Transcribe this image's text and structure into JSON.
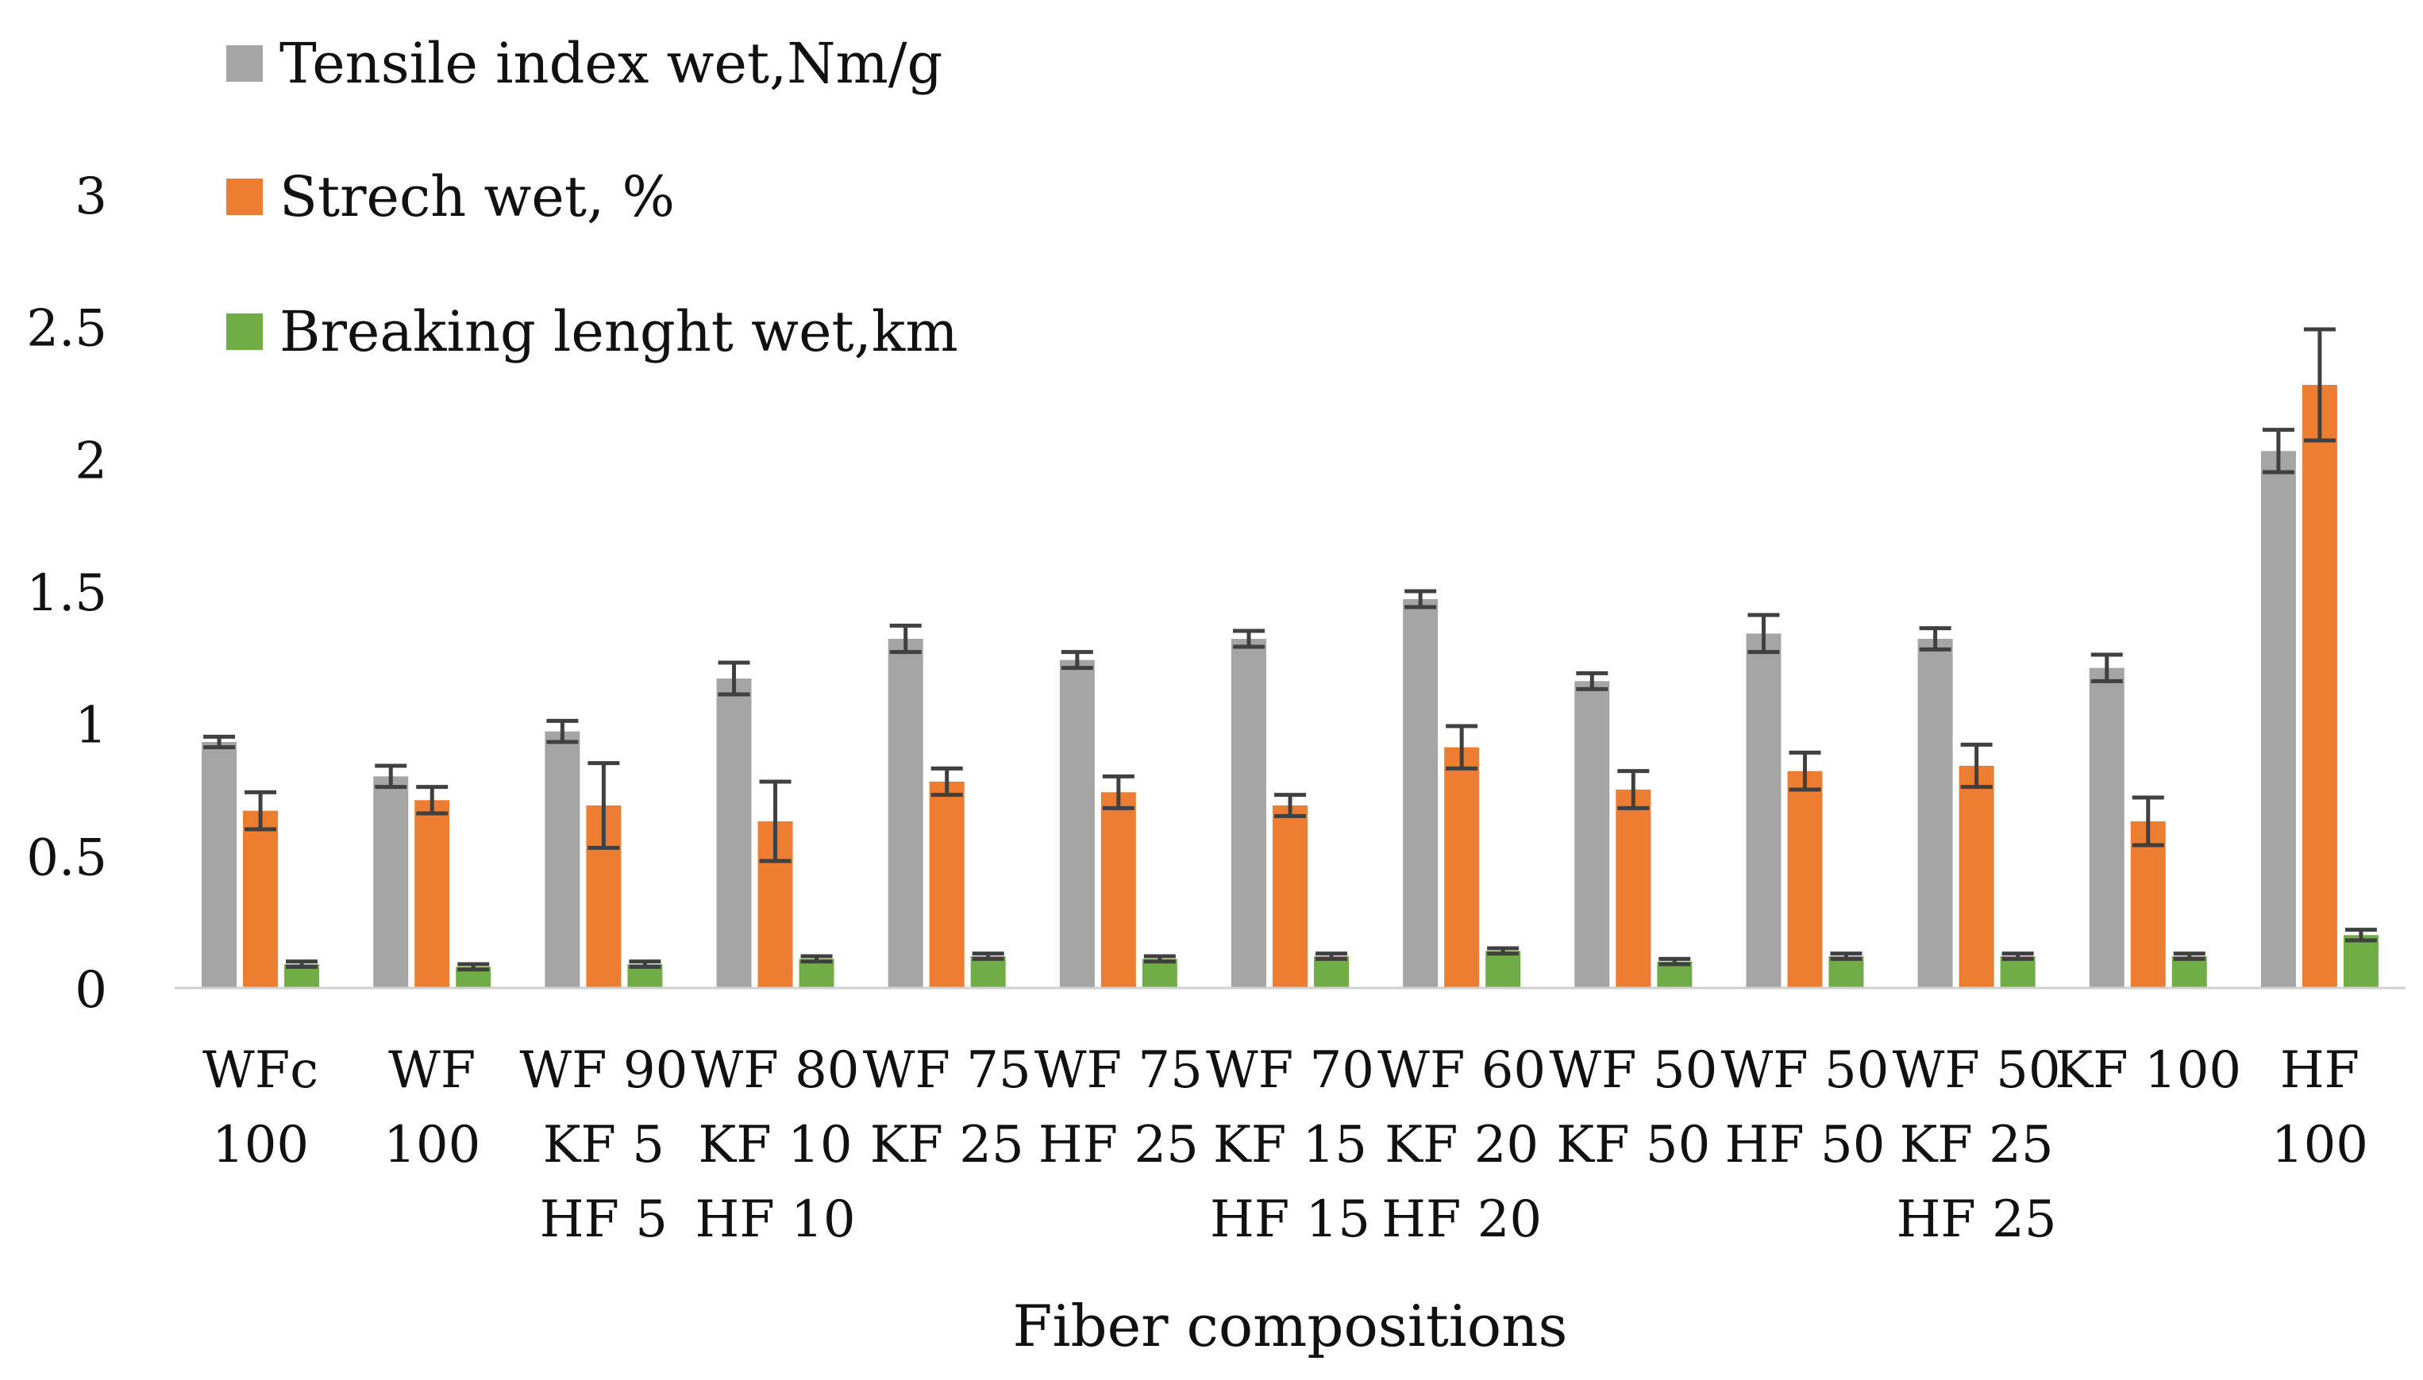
{
  "chart_data": {
    "type": "bar",
    "title": "",
    "xlabel": "Fiber compositions",
    "ylabel": "",
    "ylim": [
      0,
      3
    ],
    "yticks": [
      0,
      0.5,
      1,
      1.5,
      2,
      2.5,
      3
    ],
    "ytick_labels": [
      "0",
      "0.5",
      "1",
      "1.5",
      "2",
      "2.5",
      "3"
    ],
    "grid": false,
    "legend_position": "top-left",
    "error_bars": true,
    "categories": [
      [
        "WFc",
        "100"
      ],
      [
        "WF",
        "100"
      ],
      [
        "WF 90",
        "KF 5",
        "HF 5"
      ],
      [
        "WF 80",
        "KF 10",
        "HF 10"
      ],
      [
        "WF 75",
        "KF 25"
      ],
      [
        "WF 75",
        "HF 25"
      ],
      [
        "WF 70",
        "KF 15",
        "HF 15"
      ],
      [
        "WF 60",
        "KF 20",
        "HF 20"
      ],
      [
        "WF 50",
        "KF 50"
      ],
      [
        "WF 50",
        "HF 50"
      ],
      [
        "WF 50",
        "KF 25",
        "HF 25"
      ],
      [
        "KF 100"
      ],
      [
        "HF",
        "100"
      ]
    ],
    "series": [
      {
        "name": "Tensile index wet,Nm/g",
        "color": "#A5A5A5",
        "values": [
          0.93,
          0.8,
          0.97,
          1.17,
          1.32,
          1.24,
          1.32,
          1.47,
          1.16,
          1.34,
          1.32,
          1.21,
          2.03
        ],
        "errors": [
          0.02,
          0.04,
          0.04,
          0.06,
          0.05,
          0.03,
          0.03,
          0.03,
          0.03,
          0.07,
          0.04,
          0.05,
          0.08
        ]
      },
      {
        "name": "Strech wet, %",
        "color": "#ED7D31",
        "values": [
          0.67,
          0.71,
          0.69,
          0.63,
          0.78,
          0.74,
          0.69,
          0.91,
          0.75,
          0.82,
          0.84,
          0.63,
          2.28
        ],
        "errors": [
          0.07,
          0.05,
          0.16,
          0.15,
          0.05,
          0.06,
          0.04,
          0.08,
          0.07,
          0.07,
          0.08,
          0.09,
          0.21
        ]
      },
      {
        "name": "Breaking lenght wet,km",
        "color": "#70AD47",
        "values": [
          0.09,
          0.08,
          0.09,
          0.11,
          0.12,
          0.11,
          0.12,
          0.14,
          0.1,
          0.12,
          0.12,
          0.12,
          0.2
        ],
        "errors": [
          0.01,
          0.01,
          0.01,
          0.01,
          0.01,
          0.01,
          0.01,
          0.01,
          0.01,
          0.01,
          0.01,
          0.01,
          0.02
        ]
      }
    ]
  }
}
